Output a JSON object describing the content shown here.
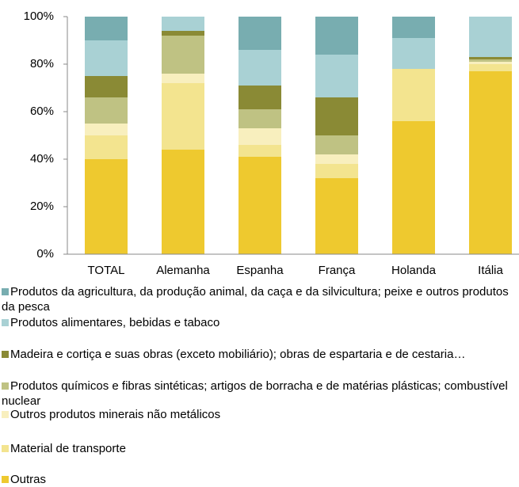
{
  "chart_data": {
    "type": "stacked_bar",
    "categories": [
      "TOTAL",
      "Alemanha",
      "Espanha",
      "França",
      "Holanda",
      "Itália"
    ],
    "series": [
      {
        "name": "Produtos da agricultura, da produção animal, da caça e da silvicultura; peixe e outros produtos da pesca",
        "color": "#78adb0",
        "values": [
          10,
          0,
          14,
          16,
          9,
          0
        ]
      },
      {
        "name": "Produtos alimentares, bebidas e tabaco",
        "color": "#a9d1d4",
        "values": [
          15,
          6,
          15,
          18,
          13,
          17
        ]
      },
      {
        "name": "Madeira e cortiça e suas obras (exceto mobiliário); obras de espartaria e de cestaria…",
        "color": "#8a8a35",
        "values": [
          9,
          2,
          10,
          16,
          0,
          1
        ]
      },
      {
        "name": "Produtos químicos e fibras sintéticas; artigos de borracha e de matérias plásticas; combustível nuclear",
        "color": "#bfc283",
        "values": [
          11,
          16,
          8,
          8,
          0,
          1
        ]
      },
      {
        "name": "Outros produtos minerais não metálicos",
        "color": "#f8efbe",
        "values": [
          5,
          4,
          7,
          4,
          0,
          1
        ]
      },
      {
        "name": "Material de transporte",
        "color": "#f3e48f",
        "values": [
          10,
          28,
          5,
          6,
          22,
          3
        ]
      },
      {
        "name": "Outras",
        "color": "#eec92f",
        "values": [
          40,
          44,
          41,
          32,
          56,
          77
        ]
      }
    ],
    "ylim": [
      0,
      100
    ],
    "yticks": [
      {
        "value": 0,
        "label": "0%"
      },
      {
        "value": 20,
        "label": "20%"
      },
      {
        "value": 40,
        "label": "40%"
      },
      {
        "value": 60,
        "label": "60%"
      },
      {
        "value": 80,
        "label": "80%"
      },
      {
        "value": 100,
        "label": "100%"
      }
    ]
  }
}
